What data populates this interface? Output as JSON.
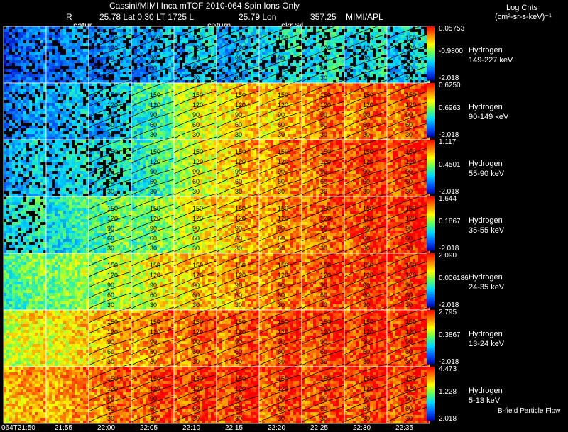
{
  "header": {
    "title": "Cassini/MIMI Inca mTOF  2010-064   Spin    Ions Only",
    "r_label": "R",
    "position": "25.78 Lat 0.30 LT 1725 L",
    "lon": "25.79 Lon",
    "lon_value": "357.25",
    "org": "MIMI/APL",
    "label_satur": "satur",
    "label_saturn": "saturn",
    "label_skr": "skr-wl",
    "units_line1": "Log Cnts",
    "units_line2": "(cm²-sr-s-keV)⁻¹"
  },
  "footer": {
    "bfield_label": "B-field Particle Flow"
  },
  "chart_data": {
    "type": "heatmap",
    "title": "Cassini/MIMI Inca mTOF  2010-064   Spin    Ions Only",
    "x_time_labels": [
      "064T21:50",
      "21:55",
      "22:00",
      "22:05",
      "22:10",
      "22:15",
      "22:20",
      "22:25",
      "22:30",
      "22:35"
    ],
    "contour_labels": [
      "30",
      "60",
      "90",
      "120",
      "150"
    ],
    "rows": [
      {
        "species": "Hydrogen",
        "energy": "149-227 keV",
        "cmax": "0.05753",
        "cmid": "-0.9800",
        "cmin": "-2.018",
        "intensity": [
          0.1,
          0.15,
          0.18,
          0.2,
          0.25,
          0.22,
          0.3,
          0.32,
          0.3,
          0.28
        ]
      },
      {
        "species": "Hydrogen",
        "energy": "90-149 keV",
        "cmax": "0.6250",
        "cmid": "0.6963",
        "cmin": "-2.018",
        "intensity": [
          0.18,
          0.22,
          0.25,
          0.4,
          0.6,
          0.68,
          0.72,
          0.8,
          0.82,
          0.84
        ]
      },
      {
        "species": "Hydrogen",
        "energy": "55-90 keV",
        "cmax": "1.117",
        "cmid": "0.4501",
        "cmin": "-2.018",
        "intensity": [
          0.25,
          0.28,
          0.32,
          0.4,
          0.58,
          0.7,
          0.78,
          0.84,
          0.88,
          0.9
        ]
      },
      {
        "species": "Hydrogen",
        "energy": "35-55 keV",
        "cmax": "1.644",
        "cmid": "0.1867",
        "cmin": "-2.018",
        "intensity": [
          0.32,
          0.36,
          0.45,
          0.5,
          0.62,
          0.72,
          0.78,
          0.84,
          0.88,
          0.92
        ]
      },
      {
        "species": "Hydrogen",
        "energy": "24-35 keV",
        "cmax": "2.090",
        "cmid": "0.006186",
        "cmin": "-2.018",
        "intensity": [
          0.45,
          0.5,
          0.55,
          0.62,
          0.7,
          0.76,
          0.8,
          0.85,
          0.88,
          0.9
        ]
      },
      {
        "species": "Hydrogen",
        "energy": "13-24 keV",
        "cmax": "2.795",
        "cmid": "0.3867",
        "cmin": "-2.018",
        "intensity": [
          0.62,
          0.65,
          0.72,
          0.78,
          0.82,
          0.85,
          0.86,
          0.88,
          0.9,
          0.9
        ]
      },
      {
        "species": "Hydrogen",
        "energy": "5-13 keV",
        "cmax": "4.473",
        "cmid": "1.228",
        "cmin": "2.018",
        "intensity": [
          0.74,
          0.76,
          0.82,
          0.86,
          0.88,
          0.9,
          0.88,
          0.88,
          0.88,
          0.88
        ]
      }
    ],
    "colorbar": {
      "colors": [
        "#0000b0",
        "#0060ff",
        "#00d8ff",
        "#60ff60",
        "#ffff00",
        "#ff8000",
        "#ff0000"
      ]
    },
    "grid": false,
    "legend_placement": "right"
  }
}
